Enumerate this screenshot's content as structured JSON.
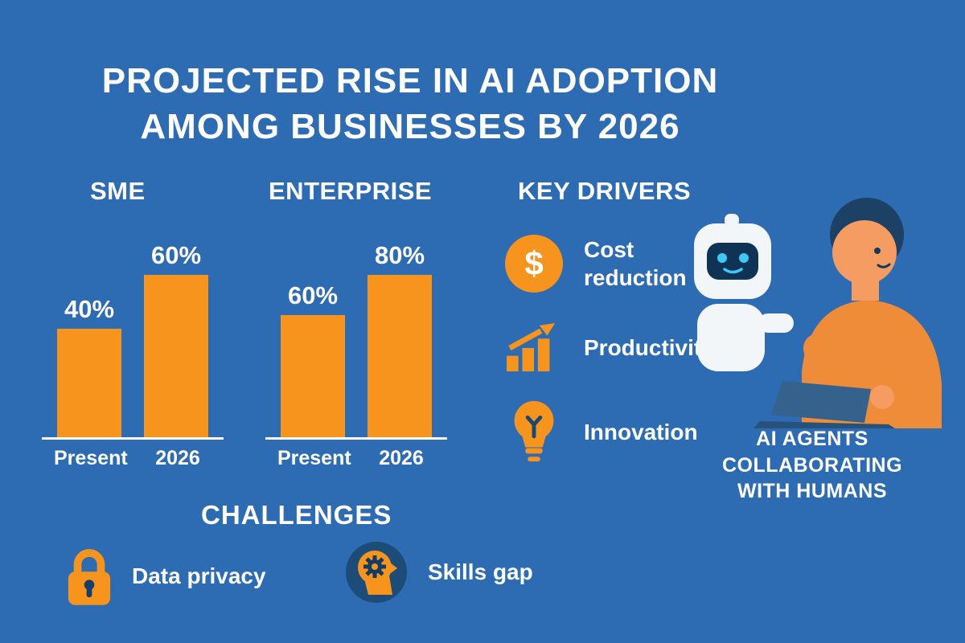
{
  "palette": {
    "background": "#2D6BB3",
    "accent_orange": "#F7941E",
    "text_white": "#FFFFFF",
    "navy": "#0F3355",
    "robot_screen_cyan": "#3EC9F5"
  },
  "title": {
    "line1": "PROJECTED RISE IN AI ADOPTION",
    "line2": "AMONG BUSINESSES BY 2026"
  },
  "chart_data": [
    {
      "type": "bar",
      "title": "SME",
      "categories": [
        "Present",
        "2026"
      ],
      "values": [
        40,
        60
      ],
      "value_labels": [
        "40%",
        "60%"
      ],
      "unit": "percent",
      "bar_color": "#F7941E",
      "ylim": [
        0,
        100
      ],
      "grid": false,
      "legend": "none"
    },
    {
      "type": "bar",
      "title": "ENTERPRISE",
      "categories": [
        "Present",
        "2026"
      ],
      "values": [
        60,
        80
      ],
      "value_labels": [
        "60%",
        "80%"
      ],
      "unit": "percent",
      "bar_color": "#F7941E",
      "ylim": [
        0,
        100
      ],
      "grid": false,
      "legend": "none"
    }
  ],
  "key_drivers": {
    "heading": "KEY DRIVERS",
    "items": [
      {
        "icon": "dollar-icon",
        "icon_glyph": "$",
        "label": "Cost reduction"
      },
      {
        "icon": "growth-chart-icon",
        "label": "Productivity"
      },
      {
        "icon": "lightbulb-icon",
        "label": "Innovation"
      }
    ]
  },
  "illustration": {
    "subject": "robot-and-human-at-laptop",
    "caption_lines": [
      "AI AGENTS",
      "COLLABORATING",
      "WITH HUMANS"
    ]
  },
  "challenges": {
    "heading": "CHALLENGES",
    "items": [
      {
        "icon": "padlock-icon",
        "label": "Data privacy"
      },
      {
        "icon": "head-gear-icon",
        "label": "Skills gap"
      }
    ]
  }
}
